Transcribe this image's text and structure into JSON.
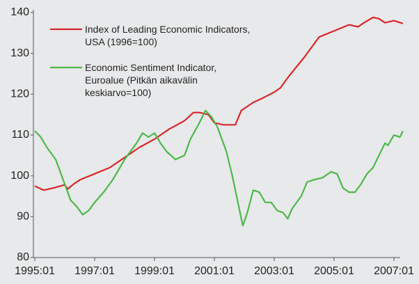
{
  "chart_data": {
    "type": "line",
    "ylim": [
      80,
      140
    ],
    "yticks": [
      80,
      90,
      100,
      110,
      120,
      130,
      140
    ],
    "xlim": [
      1995,
      2007.5
    ],
    "xticks": [
      {
        "value": 1995,
        "label": "1995:01"
      },
      {
        "value": 1997,
        "label": "1997:01"
      },
      {
        "value": 1999,
        "label": "1999:01"
      },
      {
        "value": 2001,
        "label": "2001:01"
      },
      {
        "value": 2003,
        "label": "2003:01"
      },
      {
        "value": 2005,
        "label": "2005:01"
      },
      {
        "value": 2007,
        "label": "2007:01"
      }
    ],
    "legend": "upper left",
    "series": [
      {
        "name": "Index of Leading Economic Indicators,\nUSA (1996=100)",
        "color": "#d9262b",
        "x": [
          1995.0,
          1995.3,
          1995.6,
          1996.0,
          1996.1,
          1996.3,
          1996.5,
          1997.0,
          1997.5,
          1998.0,
          1998.5,
          1999.0,
          1999.5,
          2000.0,
          2000.3,
          2000.5,
          2000.8,
          2001.0,
          2001.3,
          2001.7,
          2001.9,
          2002.3,
          2002.6,
          2003.0,
          2003.2,
          2003.5,
          2004.0,
          2004.5,
          2005.0,
          2005.5,
          2005.8,
          2006.0,
          2006.3,
          2006.5,
          2006.7,
          2007.0,
          2007.3
        ],
        "values": [
          97.5,
          96.5,
          97,
          97.8,
          96.8,
          98,
          99,
          100.5,
          102,
          104.5,
          107,
          109,
          111.5,
          113.5,
          115.5,
          115.5,
          115,
          113,
          112.5,
          112.5,
          116,
          118,
          119,
          120.5,
          121.5,
          124.5,
          129,
          134,
          135.5,
          137,
          136.5,
          137.5,
          138.8,
          138.5,
          137.5,
          138,
          137.3
        ]
      },
      {
        "name": "Economic Sentiment Indicator,\nEuroalue (Pitkän aikavälin\nkeskiarvo=100)",
        "color": "#4cb848",
        "x": [
          1995.0,
          1995.2,
          1995.4,
          1995.7,
          1995.9,
          1996.2,
          1996.4,
          1996.6,
          1996.8,
          1997.0,
          1997.3,
          1997.6,
          1998.0,
          1998.4,
          1998.6,
          1998.8,
          1999.0,
          1999.2,
          1999.4,
          1999.7,
          2000.0,
          2000.2,
          2000.5,
          2000.7,
          2000.9,
          2001.1,
          2001.4,
          2001.6,
          2001.8,
          2001.95,
          2002.1,
          2002.3,
          2002.5,
          2002.7,
          2002.9,
          2003.1,
          2003.3,
          2003.45,
          2003.6,
          2003.9,
          2004.1,
          2004.3,
          2004.6,
          2004.9,
          2005.1,
          2005.3,
          2005.5,
          2005.7,
          2005.9,
          2006.1,
          2006.3,
          2006.5,
          2006.7,
          2006.8,
          2007.0,
          2007.2,
          2007.3
        ],
        "values": [
          111,
          109.5,
          107,
          104,
          100,
          94,
          92.5,
          90.5,
          91.5,
          93.5,
          96,
          99,
          104,
          108,
          110.5,
          109.5,
          110.5,
          108,
          106,
          104,
          105,
          109,
          113,
          116,
          114.5,
          112,
          106,
          100,
          93,
          87.8,
          91,
          96.5,
          96,
          93.5,
          93.5,
          91.5,
          91,
          89.5,
          92,
          95,
          98.5,
          99,
          99.5,
          101,
          100.5,
          97,
          96,
          96,
          98,
          100.5,
          102,
          105,
          108,
          107.5,
          110,
          109.5,
          111
        ]
      }
    ]
  }
}
